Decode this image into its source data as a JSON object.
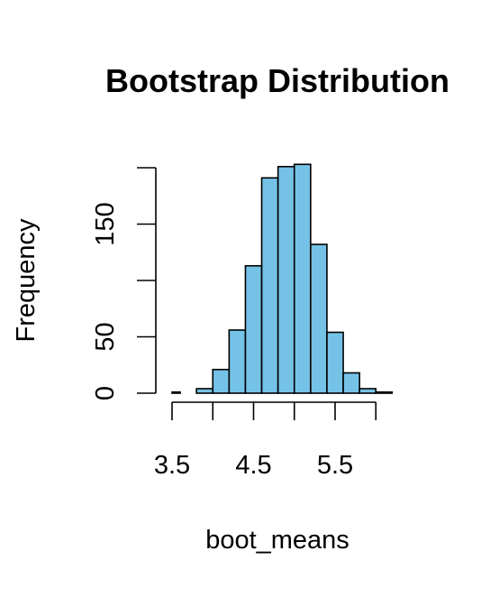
{
  "chart_data": {
    "type": "bar",
    "title": "Bootstrap Distribution",
    "xlabel": "boot_means",
    "ylabel": "Frequency",
    "bar_color": "#75c2e7",
    "edge_color": "#000000",
    "bins": [
      {
        "x0": 3.5,
        "x1": 3.6,
        "count": 1
      },
      {
        "x0": 3.6,
        "x1": 3.8,
        "count": 0
      },
      {
        "x0": 3.8,
        "x1": 4.0,
        "count": 4
      },
      {
        "x0": 4.0,
        "x1": 4.2,
        "count": 21
      },
      {
        "x0": 4.2,
        "x1": 4.4,
        "count": 56
      },
      {
        "x0": 4.4,
        "x1": 4.6,
        "count": 113
      },
      {
        "x0": 4.6,
        "x1": 4.8,
        "count": 191
      },
      {
        "x0": 4.8,
        "x1": 5.0,
        "count": 201
      },
      {
        "x0": 5.0,
        "x1": 5.2,
        "count": 203
      },
      {
        "x0": 5.2,
        "x1": 5.4,
        "count": 132
      },
      {
        "x0": 5.4,
        "x1": 5.6,
        "count": 54
      },
      {
        "x0": 5.6,
        "x1": 5.8,
        "count": 18
      },
      {
        "x0": 5.8,
        "x1": 6.0,
        "count": 4
      },
      {
        "x0": 6.0,
        "x1": 6.2,
        "count": 1
      }
    ],
    "xlim": [
      3.4,
      6.2
    ],
    "ylim": [
      0,
      203
    ],
    "x_ticks": [
      3.5,
      4.0,
      4.5,
      5.0,
      5.5,
      6.0
    ],
    "x_tick_labels": [
      {
        "value": 3.5,
        "label": "3.5"
      },
      {
        "value": 4.5,
        "label": "4.5"
      },
      {
        "value": 5.5,
        "label": "5.5"
      }
    ],
    "y_ticks": [
      0,
      50,
      100,
      150,
      200
    ],
    "y_tick_labels": [
      {
        "value": 0,
        "label": "0"
      },
      {
        "value": 50,
        "label": "50"
      },
      {
        "value": 150,
        "label": "150"
      }
    ]
  }
}
